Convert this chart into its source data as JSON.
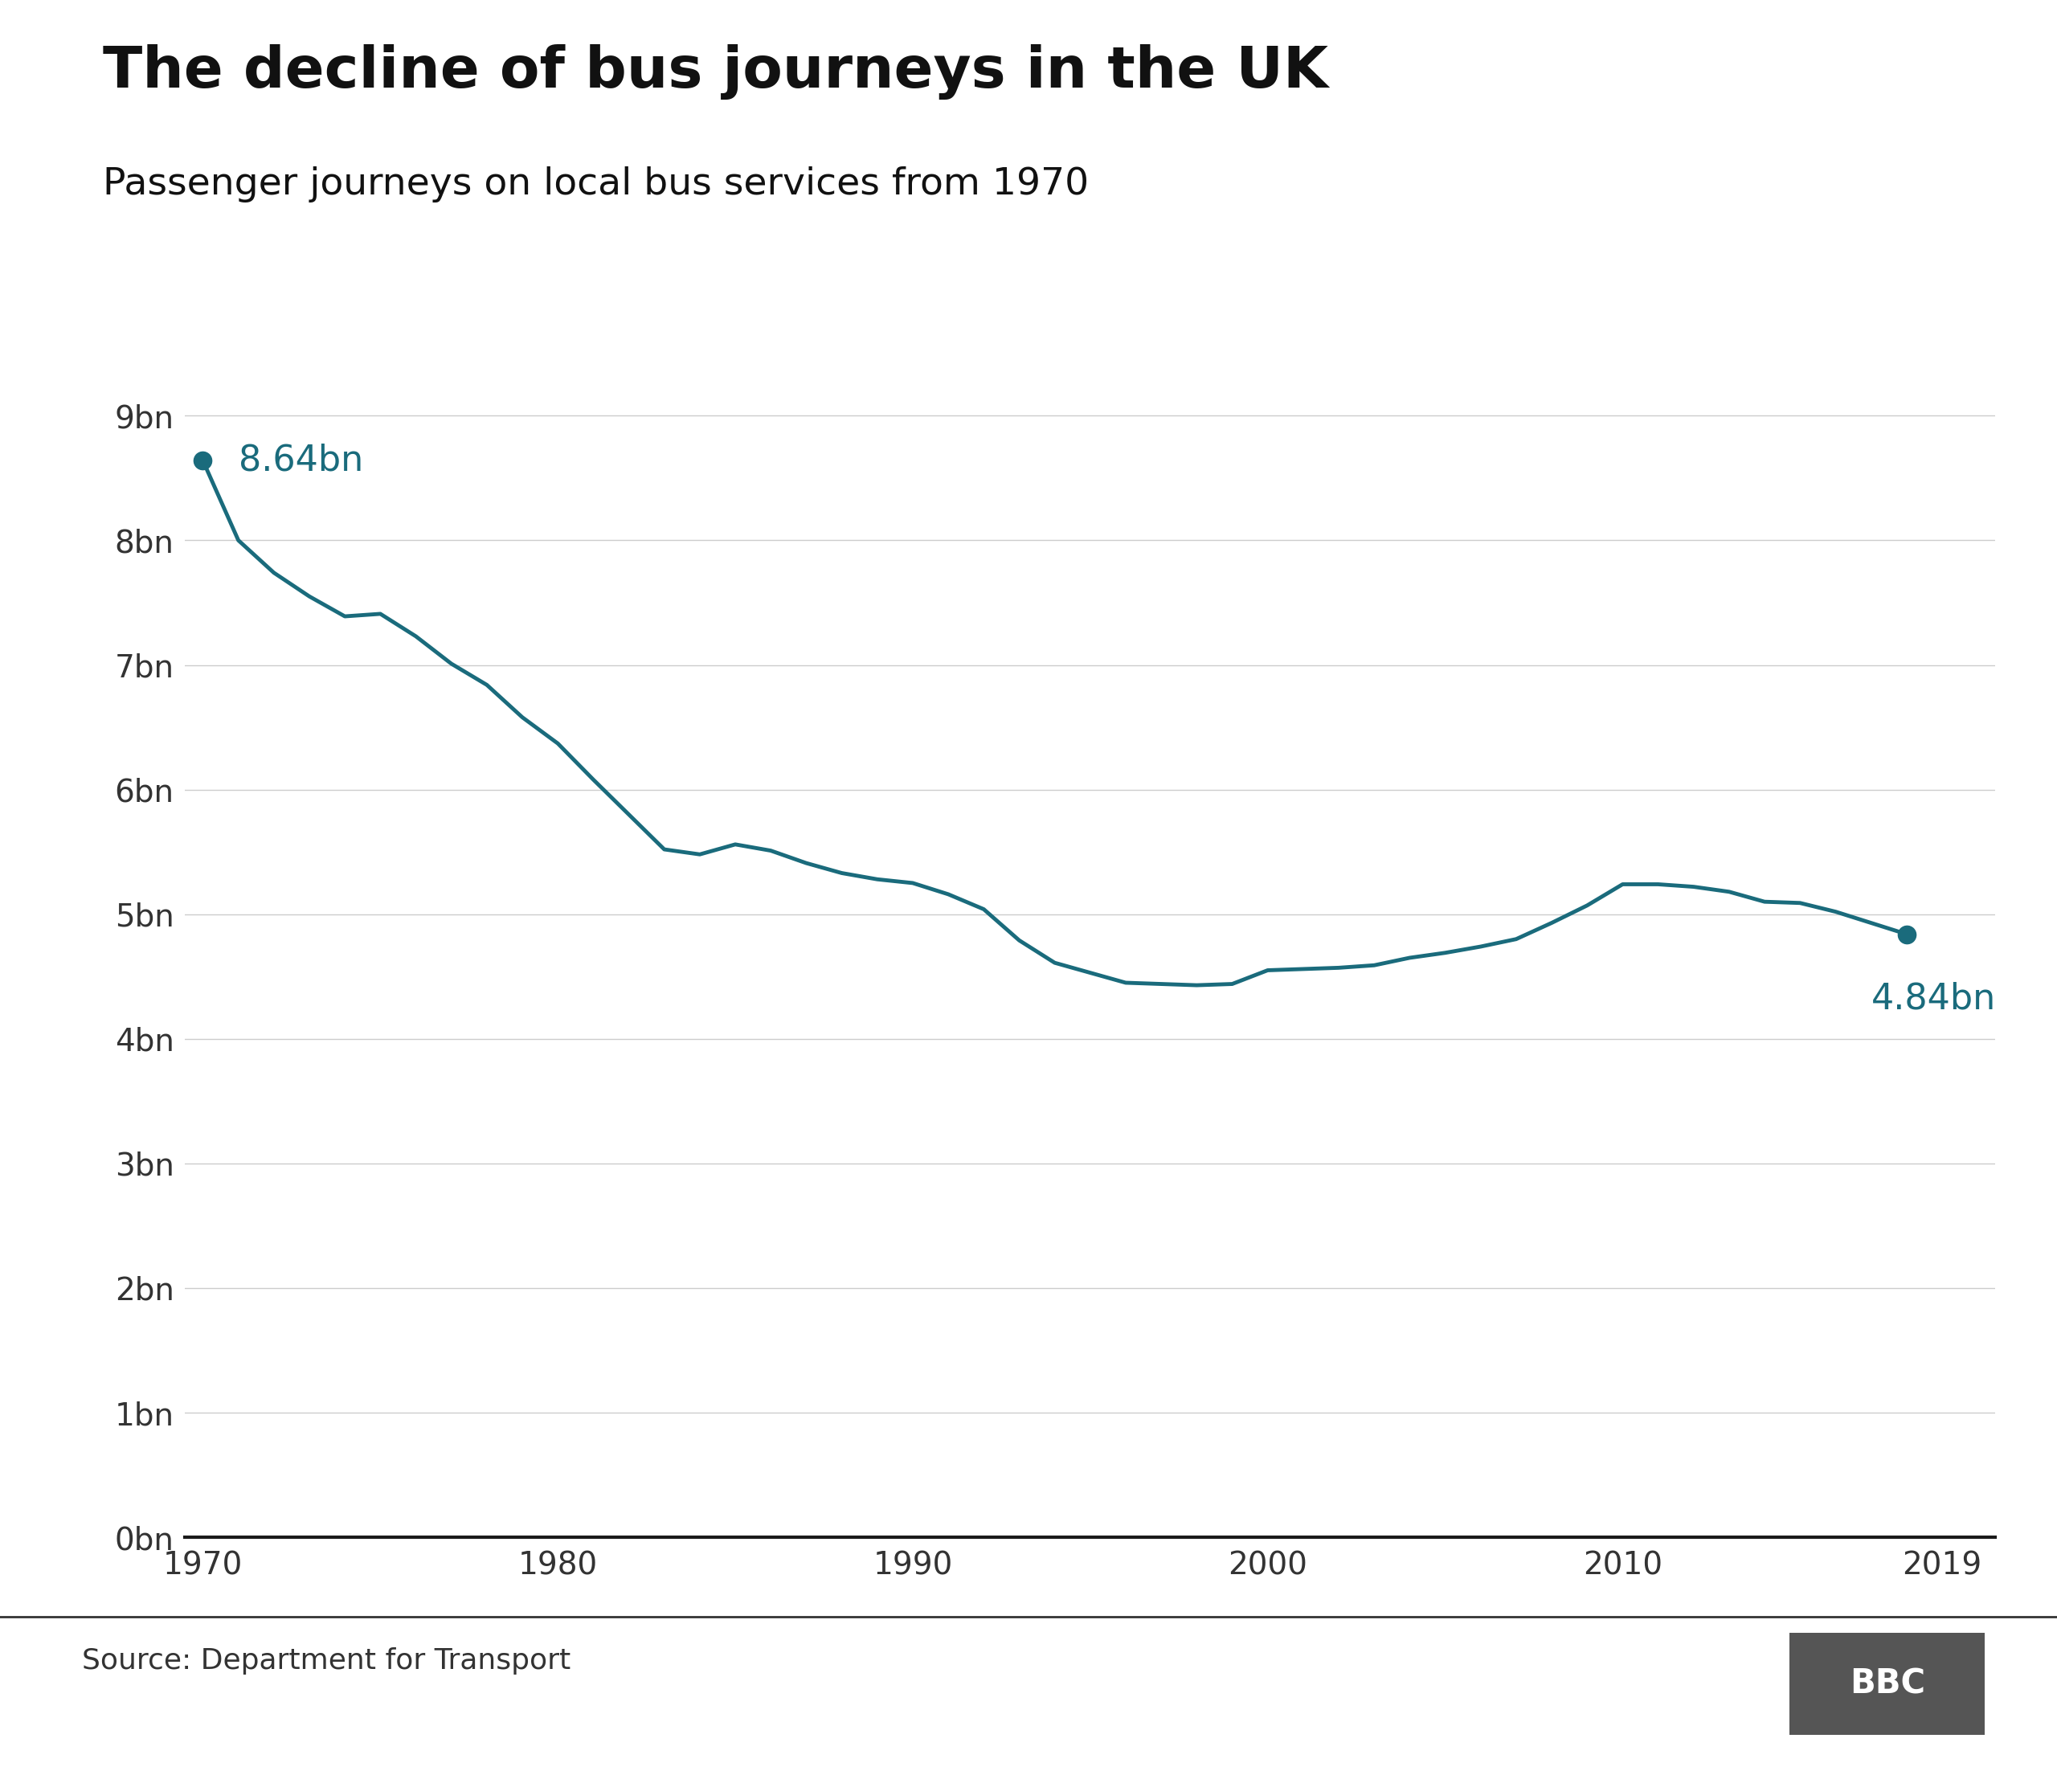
{
  "title": "The decline of bus journeys in the UK",
  "subtitle": "Passenger journeys on local bus services from 1970",
  "source": "Source: Department for Transport",
  "line_color": "#1a6b7c",
  "background_color": "#ffffff",
  "title_fontsize": 52,
  "subtitle_fontsize": 34,
  "years": [
    1970,
    1971,
    1972,
    1973,
    1974,
    1975,
    1976,
    1977,
    1978,
    1979,
    1980,
    1981,
    1982,
    1983,
    1984,
    1985,
    1986,
    1987,
    1988,
    1989,
    1990,
    1991,
    1992,
    1993,
    1994,
    1995,
    1996,
    1997,
    1998,
    1999,
    2000,
    2001,
    2002,
    2003,
    2004,
    2005,
    2006,
    2007,
    2008,
    2009,
    2010,
    2011,
    2012,
    2013,
    2014,
    2015,
    2016,
    2017,
    2018
  ],
  "values": [
    8.64,
    8.0,
    7.74,
    7.55,
    7.39,
    7.41,
    7.23,
    7.01,
    6.84,
    6.58,
    6.37,
    6.08,
    5.8,
    5.52,
    5.48,
    5.56,
    5.51,
    5.41,
    5.33,
    5.28,
    5.25,
    5.16,
    5.04,
    4.79,
    4.61,
    4.53,
    4.45,
    4.44,
    4.43,
    4.44,
    4.55,
    4.56,
    4.57,
    4.59,
    4.65,
    4.69,
    4.74,
    4.8,
    4.93,
    5.07,
    5.24,
    5.24,
    5.22,
    5.18,
    5.1,
    5.09,
    5.02,
    4.93,
    4.84
  ],
  "yticks": [
    0,
    1,
    2,
    3,
    4,
    5,
    6,
    7,
    8,
    9
  ],
  "ytick_labels": [
    "0bn",
    "1bn",
    "2bn",
    "3bn",
    "4bn",
    "5bn",
    "6bn",
    "7bn",
    "8bn",
    "9bn"
  ],
  "xticks": [
    1970,
    1980,
    1990,
    2000,
    2010,
    2019
  ],
  "ylim": [
    0,
    9.5
  ],
  "xlim": [
    1969.5,
    2020.5
  ],
  "first_label": "8.64bn",
  "last_label": "4.84bn",
  "first_year": 1970,
  "last_year": 2018,
  "first_value": 8.64,
  "last_value": 4.84,
  "line_width": 3.5,
  "marker_size": 16,
  "annotation_fontsize": 32
}
